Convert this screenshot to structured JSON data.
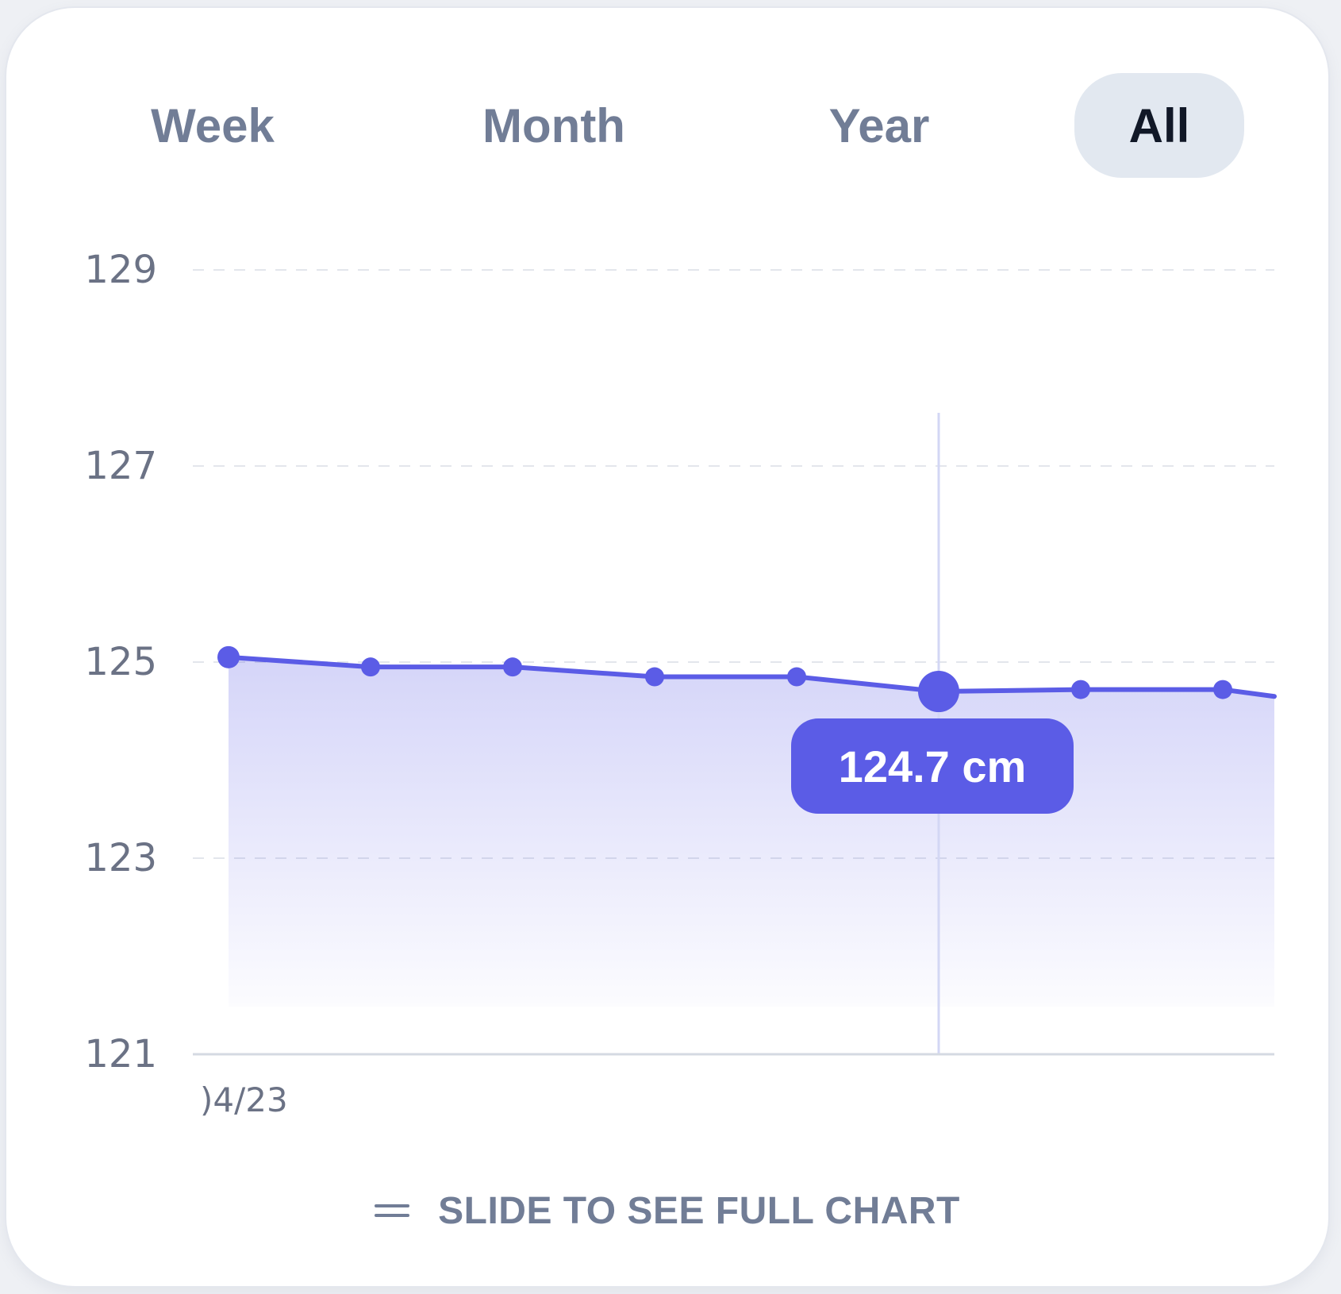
{
  "tabs": [
    {
      "label": "Week",
      "active": false
    },
    {
      "label": "Month",
      "active": false
    },
    {
      "label": "Year",
      "active": false
    },
    {
      "label": "All",
      "active": true
    }
  ],
  "chart_data": {
    "type": "area",
    "y_ticks": [
      "129",
      "127",
      "125",
      "123",
      "121"
    ],
    "ylim": [
      121,
      129
    ],
    "grid": true,
    "x_labels": [
      ")4/23"
    ],
    "series": [
      {
        "values": [
          125.05,
          124.95,
          124.95,
          124.85,
          124.85,
          124.7,
          124.72,
          124.72,
          124.65
        ],
        "color": "#5b5ce6"
      }
    ],
    "selected_index": 5,
    "tooltip": "124.7 cm"
  },
  "footer": {
    "label": "SLIDE TO SEE FULL CHART"
  },
  "colors": {
    "accent": "#5b5ce6",
    "tab_active_bg": "#e2e8f0",
    "muted_text": "#717d96"
  }
}
